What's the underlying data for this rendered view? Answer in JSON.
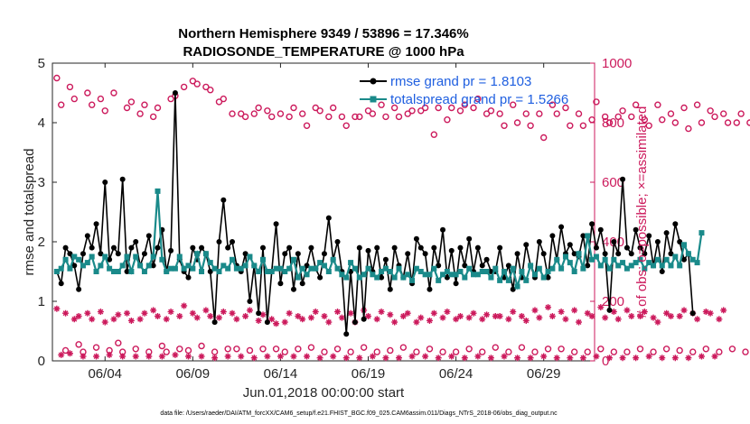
{
  "chart_data": {
    "type": "line",
    "title": "Northern Hemisphere 9349 / 53896 = 17.346%",
    "subtitle": "RADIOSONDE_TEMPERATURE @ 1000 hPa",
    "xlabel": "Jun.01,2018 00:00:00 start",
    "ylabel": "rmse and totalspread",
    "ylabel_right": "# of obs: o=possible; ×=assimilated",
    "xlim": [
      0,
      30.9
    ],
    "ylim": [
      0,
      5
    ],
    "ylim_right": [
      0,
      1000
    ],
    "x_ticks": [
      3,
      8,
      13,
      18,
      23,
      28
    ],
    "x_tick_labels": [
      "06/04",
      "06/09",
      "06/14",
      "06/19",
      "06/24",
      "06/29"
    ],
    "y_ticks": [
      0,
      1,
      2,
      3,
      4,
      5
    ],
    "y_tick_labels": [
      "0",
      "1",
      "2",
      "3",
      "4",
      "5"
    ],
    "y_right_ticks": [
      0,
      200,
      400,
      600,
      800,
      1000
    ],
    "y_right_tick_labels": [
      "0",
      "200",
      "400",
      "600",
      "800",
      "1000"
    ],
    "x_step_days": 0.25,
    "colors": {
      "rmse": "#000000",
      "spread": "#1a8a8a",
      "obs": "#cc1a5c",
      "legend_text": "#1f5fe0"
    },
    "legend": [
      {
        "name": "rmse grand pr = 1.8103",
        "series": "rmse"
      },
      {
        "name": "totalspread grand pr = 1.5266",
        "series": "spread"
      }
    ],
    "series": [
      {
        "name": "rmse",
        "axis": "left",
        "values": [
          1.5,
          1.3,
          1.9,
          1.8,
          1.6,
          1.2,
          1.8,
          2.1,
          1.9,
          2.3,
          1.8,
          3.0,
          1.7,
          1.9,
          1.8,
          3.05,
          1.5,
          1.9,
          2.0,
          1.6,
          1.8,
          2.1,
          1.6,
          1.9,
          2.2,
          1.5,
          1.85,
          4.5,
          1.7,
          1.5,
          1.4,
          1.9,
          1.7,
          1.9,
          1.8,
          1.5,
          0.65,
          2.0,
          2.7,
          1.9,
          2.0,
          1.6,
          1.5,
          1.8,
          1.0,
          1.6,
          0.8,
          1.9,
          0.65,
          1.5,
          2.3,
          1.3,
          1.8,
          1.9,
          1.2,
          1.8,
          1.3,
          1.6,
          1.9,
          1.55,
          1.4,
          1.8,
          2.4,
          1.7,
          2.0,
          1.5,
          0.45,
          1.5,
          0.65,
          1.9,
          0.7,
          1.85,
          1.5,
          1.9,
          1.4,
          1.7,
          1.2,
          1.9,
          1.6,
          1.4,
          1.8,
          1.3,
          2.05,
          1.9,
          1.8,
          1.2,
          1.9,
          1.6,
          2.2,
          1.4,
          1.85,
          1.3,
          1.9,
          1.6,
          2.05,
          1.5,
          1.9,
          1.6,
          1.7,
          1.5,
          1.5,
          1.9,
          1.4,
          1.6,
          1.2,
          1.8,
          1.4,
          1.95,
          1.6,
          1.4,
          2.0,
          1.8,
          1.4,
          2.1,
          1.7,
          2.25,
          1.8,
          1.95,
          1.8,
          1.75,
          2.1,
          1.6,
          2.3,
          1.9,
          2.2,
          1.8,
          0.85,
          2.0,
          1.8,
          3.05,
          1.9,
          1.8,
          2.2,
          1.9,
          1.8,
          2.1,
          1.6,
          2.0,
          1.5,
          2.15,
          1.8,
          2.3,
          2.0,
          1.7,
          1.8,
          0.8
        ]
      },
      {
        "name": "totalspread",
        "axis": "left",
        "values": [
          1.5,
          1.55,
          1.7,
          1.55,
          1.75,
          1.7,
          1.6,
          1.65,
          1.75,
          1.5,
          1.6,
          1.75,
          1.55,
          1.5,
          1.5,
          1.6,
          1.75,
          1.5,
          1.75,
          1.6,
          1.5,
          1.6,
          1.75,
          2.85,
          1.7,
          1.5,
          1.55,
          1.55,
          1.75,
          1.55,
          1.6,
          1.55,
          1.8,
          1.5,
          1.8,
          1.65,
          1.55,
          1.5,
          1.6,
          1.55,
          1.7,
          1.55,
          1.55,
          1.6,
          1.75,
          1.6,
          1.5,
          1.7,
          1.5,
          1.5,
          1.55,
          1.55,
          1.5,
          1.55,
          1.7,
          1.4,
          1.55,
          1.45,
          1.55,
          1.55,
          1.65,
          1.6,
          1.5,
          1.7,
          1.55,
          1.45,
          1.4,
          1.65,
          1.55,
          1.4,
          1.45,
          1.55,
          1.45,
          1.4,
          1.5,
          1.55,
          1.5,
          1.4,
          1.55,
          1.4,
          1.45,
          1.35,
          1.55,
          1.5,
          1.45,
          1.45,
          1.55,
          1.35,
          1.45,
          1.5,
          1.45,
          1.45,
          1.5,
          1.4,
          1.55,
          1.45,
          1.45,
          1.5,
          1.5,
          1.4,
          1.55,
          1.35,
          1.5,
          1.35,
          1.55,
          1.25,
          1.5,
          1.35,
          1.6,
          1.45,
          1.55,
          1.4,
          1.5,
          1.55,
          1.7,
          1.55,
          1.75,
          1.65,
          1.5,
          1.8,
          1.55,
          2.1,
          1.7,
          1.75,
          1.6,
          1.7,
          1.55,
          1.7,
          1.6,
          1.65,
          1.55,
          1.6,
          1.65,
          1.7,
          1.55,
          1.65,
          1.6,
          1.7,
          1.6,
          1.7,
          1.6,
          1.75,
          1.6,
          1.95,
          1.8,
          1.7,
          1.65,
          2.15
        ]
      },
      {
        "name": "obs possible",
        "axis": "right",
        "values": [
          950,
          860,
          35,
          920,
          880,
          55,
          30,
          900,
          860,
          45,
          880,
          840,
          35,
          900,
          60,
          30,
          850,
          870,
          40,
          830,
          860,
          30,
          820,
          850,
          50,
          30,
          880,
          890,
          40,
          920,
          35,
          940,
          930,
          50,
          920,
          910,
          30,
          870,
          880,
          40,
          830,
          40,
          830,
          820,
          35,
          830,
          850,
          40,
          840,
          820,
          40,
          830,
          30,
          820,
          850,
          40,
          830,
          790,
          45,
          850,
          840,
          30,
          820,
          850,
          40,
          820,
          790,
          30,
          820,
          820,
          45,
          840,
          830,
          30,
          860,
          820,
          35,
          850,
          820,
          45,
          830,
          840,
          30,
          840,
          850,
          40,
          760,
          850,
          30,
          810,
          850,
          30,
          840,
          860,
          40,
          850,
          880,
          30,
          830,
          840,
          45,
          830,
          790,
          30,
          860,
          800,
          45,
          830,
          790,
          30,
          830,
          750,
          40,
          860,
          830,
          40,
          850,
          790,
          30,
          830,
          790,
          30,
          810,
          870,
          40,
          820,
          800,
          30,
          820,
          840,
          30,
          820,
          860,
          40,
          810,
          790,
          30,
          860,
          810,
          40,
          830,
          800,
          35,
          850,
          780,
          30,
          860,
          800,
          40,
          840,
          820,
          30,
          830,
          800,
          40,
          800,
          830,
          30,
          800,
          850,
          25,
          840
        ]
      },
      {
        "name": "obs assimilated",
        "axis": "right",
        "values": [
          175,
          20,
          160,
          25,
          140,
          150,
          15,
          160,
          140,
          15,
          165,
          130,
          20,
          140,
          155,
          15,
          160,
          135,
          15,
          140,
          160,
          15,
          170,
          150,
          15,
          140,
          165,
          20,
          150,
          185,
          15,
          160,
          145,
          15,
          170,
          150,
          10,
          145,
          165,
          15,
          160,
          140,
          15,
          150,
          170,
          10,
          135,
          155,
          15,
          140,
          125,
          15,
          130,
          160,
          15,
          150,
          140,
          15,
          145,
          165,
          10,
          150,
          130,
          15,
          165,
          145,
          10,
          160,
          130,
          10,
          170,
          150,
          15,
          140,
          165,
          10,
          155,
          130,
          10,
          150,
          160,
          15,
          130,
          145,
          15,
          135,
          160,
          10,
          145,
          165,
          15,
          140,
          150,
          10,
          145,
          160,
          15,
          140,
          155,
          10,
          150,
          150,
          15,
          140,
          165,
          10,
          150,
          135,
          10,
          170,
          145,
          15,
          180,
          150,
          10,
          165,
          140,
          10,
          170,
          130,
          10,
          160,
          150,
          15,
          180,
          145,
          10,
          165,
          140,
          10,
          170,
          150,
          10,
          150,
          165,
          15,
          145,
          130,
          10,
          160,
          150,
          10,
          150,
          170,
          10,
          160,
          140,
          15,
          165,
          160,
          15,
          140,
          170
        ]
      }
    ]
  },
  "footer": "data file: /Users/raeder/DAI/ATM_forcXX/CAM6_setup/f.e21.FHIST_BGC.f09_025.CAM6assim.011/Diags_NTrS_2018-06/obs_diag_output.nc"
}
